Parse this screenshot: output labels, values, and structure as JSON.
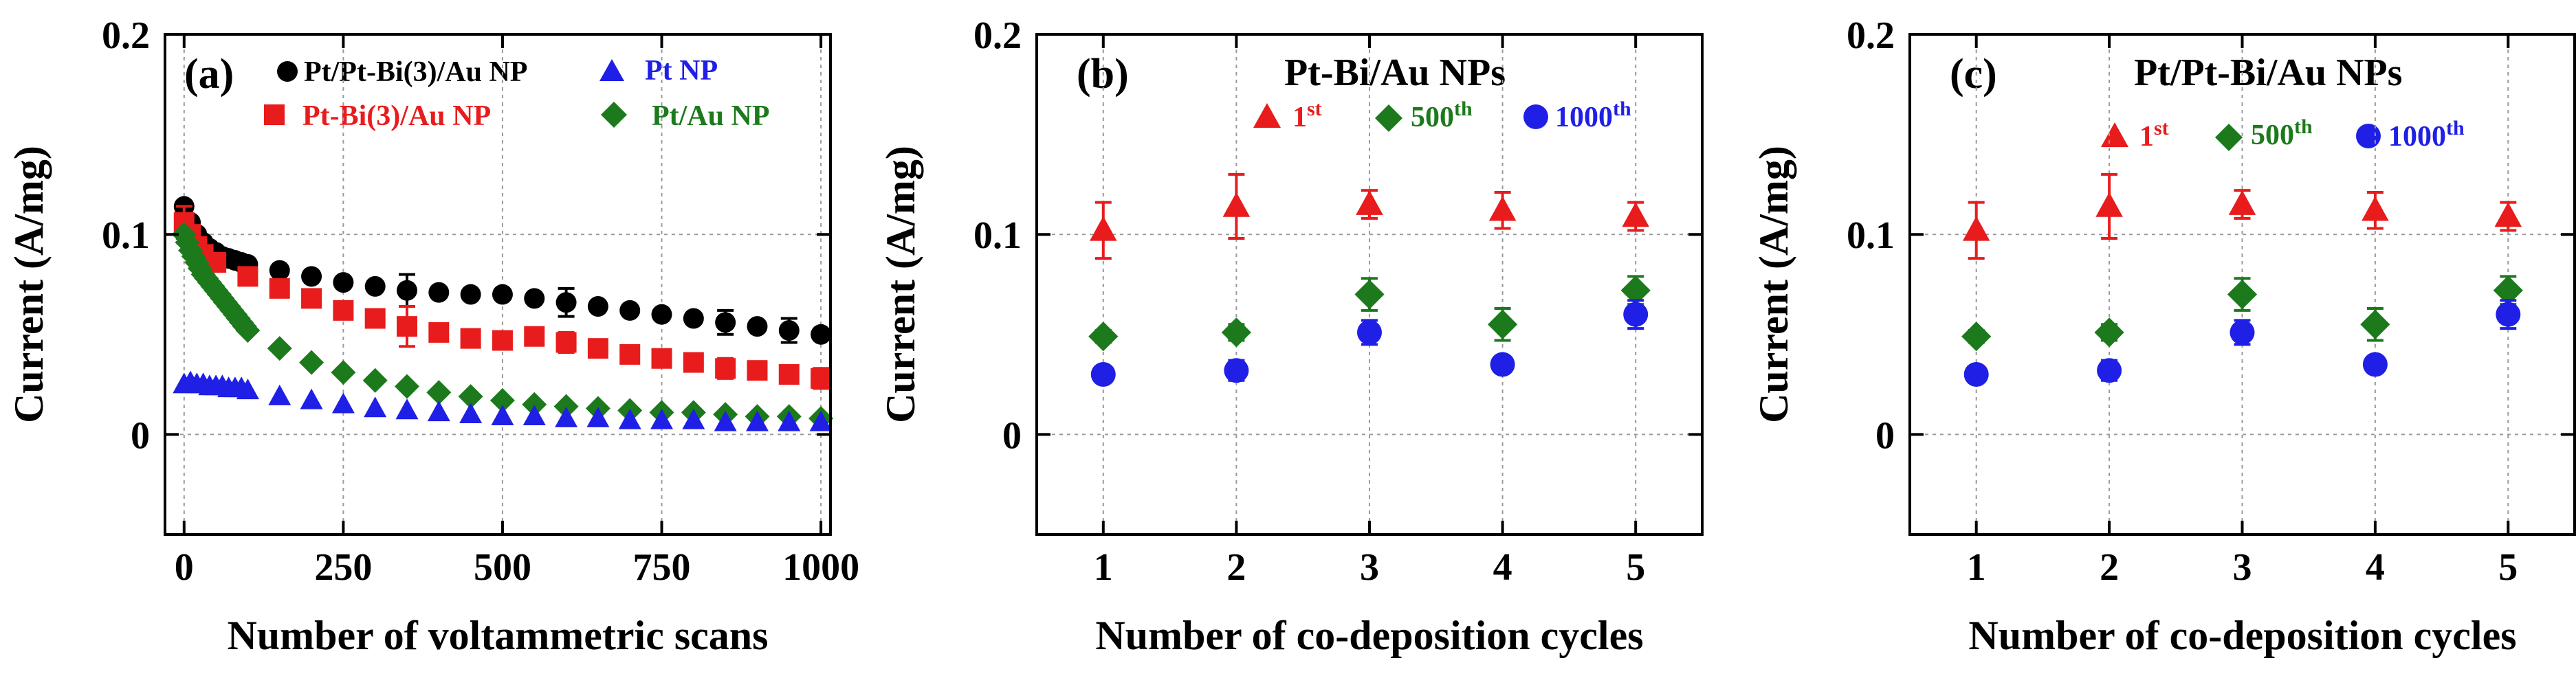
{
  "chart_data": [
    {
      "type": "scatter",
      "panel_label": "(a)",
      "xlabel": "Number of voltammetric scans",
      "ylabel": "Current (A/mg)",
      "xlim": [
        -30,
        1015
      ],
      "ylim": [
        -0.05,
        0.2
      ],
      "xticks": [
        0,
        250,
        500,
        750,
        1000
      ],
      "yticks": [
        0,
        0.1,
        0.2
      ],
      "xtick_labels": [
        "0",
        "250",
        "500",
        "750",
        "1000"
      ],
      "ytick_labels": [
        "0",
        "0.1",
        "0.2"
      ],
      "grid": true,
      "legend": [
        {
          "name": "Pt/Pt-Bi(3)/Au NP",
          "marker": "circle",
          "color": "#000000"
        },
        {
          "name": "Pt NP",
          "marker": "triangle",
          "color": "#1f1fe6"
        },
        {
          "name": "Pt-Bi(3)/Au NP",
          "marker": "square",
          "color": "#e81c1c"
        },
        {
          "name": "Pt/Au NP",
          "marker": "diamond",
          "color": "#1c7a1c"
        }
      ],
      "series": [
        {
          "name": "Pt/Pt-Bi(3)/Au NP",
          "marker": "circle",
          "color": "#000000",
          "x": [
            0,
            10,
            20,
            30,
            40,
            50,
            60,
            70,
            80,
            90,
            100,
            150,
            200,
            250,
            300,
            350,
            400,
            450,
            500,
            550,
            600,
            650,
            700,
            750,
            800,
            850,
            900,
            950,
            1000
          ],
          "y": [
            0.114,
            0.106,
            0.1,
            0.096,
            0.093,
            0.091,
            0.089,
            0.088,
            0.087,
            0.086,
            0.085,
            0.082,
            0.079,
            0.076,
            0.074,
            0.072,
            0.071,
            0.07,
            0.07,
            0.068,
            0.066,
            0.064,
            0.062,
            0.06,
            0.058,
            0.056,
            0.054,
            0.052,
            0.05
          ],
          "err": [
            0,
            0,
            0,
            0,
            0,
            0,
            0,
            0,
            0,
            0,
            0,
            0,
            0,
            0,
            0,
            0.008,
            0,
            0,
            0,
            0,
            0.007,
            0,
            0,
            0,
            0,
            0.006,
            0,
            0.006,
            0
          ]
        },
        {
          "name": "Pt-Bi(3)/Au NP",
          "marker": "square",
          "color": "#e81c1c",
          "x": [
            0,
            10,
            20,
            30,
            50,
            100,
            150,
            200,
            250,
            300,
            350,
            400,
            450,
            500,
            550,
            600,
            650,
            700,
            750,
            800,
            850,
            900,
            950,
            1000
          ],
          "y": [
            0.106,
            0.1,
            0.094,
            0.09,
            0.086,
            0.079,
            0.073,
            0.068,
            0.062,
            0.058,
            0.054,
            0.051,
            0.048,
            0.047,
            0.049,
            0.046,
            0.043,
            0.04,
            0.038,
            0.036,
            0.033,
            0.032,
            0.03,
            0.028
          ],
          "err": [
            0.008,
            0,
            0,
            0,
            0,
            0,
            0,
            0,
            0,
            0,
            0.01,
            0,
            0,
            0,
            0,
            0.005,
            0,
            0,
            0,
            0,
            0.005,
            0,
            0,
            0.005
          ]
        },
        {
          "name": "Pt/Au NP",
          "marker": "diamond",
          "color": "#1c7a1c",
          "x": [
            0,
            5,
            10,
            15,
            20,
            25,
            30,
            35,
            40,
            45,
            50,
            55,
            60,
            65,
            70,
            75,
            80,
            85,
            90,
            95,
            100,
            150,
            200,
            250,
            300,
            350,
            400,
            450,
            500,
            550,
            600,
            650,
            700,
            750,
            800,
            850,
            900,
            950,
            1000
          ],
          "y": [
            0.1,
            0.096,
            0.092,
            0.089,
            0.086,
            0.083,
            0.08,
            0.078,
            0.076,
            0.074,
            0.072,
            0.07,
            0.068,
            0.066,
            0.064,
            0.062,
            0.06,
            0.058,
            0.056,
            0.054,
            0.052,
            0.043,
            0.036,
            0.031,
            0.027,
            0.024,
            0.021,
            0.019,
            0.017,
            0.015,
            0.014,
            0.013,
            0.012,
            0.011,
            0.011,
            0.01,
            0.009,
            0.009,
            0.008
          ],
          "err": []
        },
        {
          "name": "Pt NP",
          "marker": "triangle",
          "color": "#1f1fe6",
          "x": [
            0,
            10,
            20,
            30,
            40,
            50,
            60,
            70,
            80,
            90,
            100,
            150,
            200,
            250,
            300,
            350,
            400,
            450,
            500,
            550,
            600,
            650,
            700,
            750,
            800,
            850,
            900,
            950,
            1000
          ],
          "y": [
            0.025,
            0.026,
            0.025,
            0.025,
            0.024,
            0.024,
            0.024,
            0.023,
            0.023,
            0.023,
            0.022,
            0.019,
            0.017,
            0.015,
            0.013,
            0.012,
            0.011,
            0.01,
            0.009,
            0.009,
            0.008,
            0.008,
            0.007,
            0.007,
            0.007,
            0.006,
            0.006,
            0.006,
            0.006
          ],
          "err": []
        }
      ]
    },
    {
      "type": "scatter",
      "panel_label": "(b)",
      "title": "Pt-Bi/Au NPs",
      "xlabel": "Number of co-deposition cycles",
      "ylabel": "Current (A/mg)",
      "xlim": [
        0.5,
        5.5
      ],
      "ylim": [
        -0.05,
        0.2
      ],
      "xticks": [
        1,
        2,
        3,
        4,
        5
      ],
      "yticks": [
        0,
        0.1,
        0.2
      ],
      "xtick_labels": [
        "1",
        "2",
        "3",
        "4",
        "5"
      ],
      "ytick_labels": [
        "0",
        "0.1",
        "0.2"
      ],
      "grid": true,
      "legend": [
        {
          "name": "1",
          "sup": "st",
          "marker": "triangle",
          "color": "#e81c1c"
        },
        {
          "name": "500",
          "sup": "th",
          "marker": "diamond",
          "color": "#1c7a1c"
        },
        {
          "name": "1000",
          "sup": "th",
          "marker": "circle",
          "color": "#1f1fe6"
        }
      ],
      "series": [
        {
          "name": "1st",
          "marker": "triangle",
          "color": "#e81c1c",
          "x": [
            1,
            2,
            3,
            4,
            5
          ],
          "y": [
            0.102,
            0.114,
            0.115,
            0.112,
            0.109
          ],
          "err": [
            0.014,
            0.016,
            0.007,
            0.009,
            0.007
          ]
        },
        {
          "name": "500th",
          "marker": "diamond",
          "color": "#1c7a1c",
          "x": [
            1,
            2,
            3,
            4,
            5
          ],
          "y": [
            0.049,
            0.051,
            0.07,
            0.055,
            0.072
          ],
          "err": [
            0.003,
            0.004,
            0.008,
            0.008,
            0.007
          ]
        },
        {
          "name": "1000th",
          "marker": "circle",
          "color": "#1f1fe6",
          "x": [
            1,
            2,
            3,
            4,
            5
          ],
          "y": [
            0.03,
            0.032,
            0.051,
            0.035,
            0.06
          ],
          "err": [
            0.002,
            0.005,
            0.006,
            0.003,
            0.007
          ]
        }
      ]
    },
    {
      "type": "scatter",
      "panel_label": "(c)",
      "title": "Pt/Pt-Bi/Au NPs",
      "xlabel": "Number of co-deposition cycles",
      "ylabel": "Current (A/mg)",
      "xlim": [
        0.5,
        5.5
      ],
      "ylim": [
        -0.05,
        0.2
      ],
      "xticks": [
        1,
        2,
        3,
        4,
        5
      ],
      "yticks": [
        0,
        0.1,
        0.2
      ],
      "xtick_labels": [
        "1",
        "2",
        "3",
        "4",
        "5"
      ],
      "ytick_labels": [
        "0",
        "0.1",
        "0.2"
      ],
      "grid": true,
      "legend": [
        {
          "name": "1",
          "sup": "st",
          "marker": "triangle",
          "color": "#e81c1c"
        },
        {
          "name": "500",
          "sup": "th",
          "marker": "diamond",
          "color": "#1c7a1c"
        },
        {
          "name": "1000",
          "sup": "th",
          "marker": "circle",
          "color": "#1f1fe6"
        }
      ],
      "series": [
        {
          "name": "1st",
          "marker": "triangle",
          "color": "#e81c1c",
          "x": [
            1,
            2,
            3,
            4,
            5
          ],
          "y": [
            0.102,
            0.114,
            0.115,
            0.112,
            0.109
          ],
          "err": [
            0.014,
            0.016,
            0.007,
            0.009,
            0.007
          ]
        },
        {
          "name": "500th",
          "marker": "diamond",
          "color": "#1c7a1c",
          "x": [
            1,
            2,
            3,
            4,
            5
          ],
          "y": [
            0.049,
            0.051,
            0.07,
            0.055,
            0.072
          ],
          "err": [
            0.003,
            0.004,
            0.008,
            0.008,
            0.007
          ]
        },
        {
          "name": "1000th",
          "marker": "circle",
          "color": "#1f1fe6",
          "x": [
            1,
            2,
            3,
            4,
            5
          ],
          "y": [
            0.03,
            0.032,
            0.051,
            0.035,
            0.06
          ],
          "err": [
            0.002,
            0.005,
            0.006,
            0.003,
            0.007
          ]
        }
      ]
    }
  ]
}
